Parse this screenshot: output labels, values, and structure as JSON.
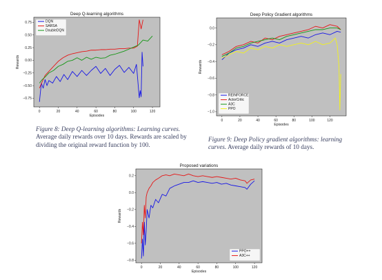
{
  "figures": [
    {
      "caption_lead": "Figure 8: Deep Q-learning algorithms: Learning curves.",
      "caption_rest": " Average daily rewards over 10 days. Rewards are scaled by dividing the original reward function by 100."
    },
    {
      "caption_lead": "Figure 9: Deep Policy gradient algorithms: learning curves.",
      "caption_rest": " Average daily rewards of 10 days."
    }
  ],
  "chart_data": [
    {
      "id": "dql",
      "type": "line",
      "title": "Deep Q-learning algorithms",
      "xlabel": "Episodes",
      "ylabel": "Rewards",
      "xlim": [
        -6,
        128
      ],
      "ylim": [
        -0.92,
        0.85
      ],
      "xticks": [
        0,
        20,
        40,
        60,
        80,
        100,
        120
      ],
      "yticks": [
        -0.75,
        -0.5,
        -0.25,
        0.0,
        0.25,
        0.5,
        0.75
      ],
      "ytick_labels": [
        "−0.75",
        "−0.50",
        "−0.25",
        "0.00",
        "0.25",
        "0.50",
        "0.75"
      ],
      "grid": false,
      "legend": "top-left",
      "background": "#c0c0c0",
      "series": [
        {
          "name": "DQN",
          "color": "#1515e6",
          "x": [
            0,
            2,
            4,
            6,
            8,
            10,
            14,
            18,
            22,
            26,
            30,
            35,
            40,
            45,
            50,
            55,
            60,
            65,
            70,
            75,
            80,
            85,
            90,
            95,
            100,
            103,
            104,
            105,
            106,
            107,
            108,
            109,
            110
          ],
          "y": [
            -0.82,
            -0.45,
            -0.55,
            -0.38,
            -0.5,
            -0.4,
            -0.45,
            -0.32,
            -0.42,
            -0.28,
            -0.38,
            -0.22,
            -0.32,
            -0.2,
            -0.3,
            -0.2,
            -0.12,
            -0.26,
            -0.16,
            -0.3,
            -0.18,
            -0.1,
            -0.24,
            -0.14,
            -0.26,
            -0.08,
            -0.3,
            -0.52,
            -0.74,
            -0.6,
            -0.72,
            0.16,
            -0.12
          ]
        },
        {
          "name": "SARSA",
          "color": "#e61515",
          "x": [
            0,
            3,
            6,
            10,
            15,
            20,
            25,
            30,
            35,
            40,
            45,
            50,
            55,
            60,
            65,
            70,
            75,
            80,
            85,
            90,
            95,
            100,
            104,
            106,
            108,
            110
          ],
          "y": [
            -0.55,
            -0.42,
            -0.3,
            -0.22,
            -0.12,
            -0.02,
            0.05,
            0.1,
            0.13,
            0.15,
            0.17,
            0.18,
            0.2,
            0.2,
            0.21,
            0.21,
            0.22,
            0.22,
            0.23,
            0.23,
            0.24,
            0.24,
            0.28,
            0.8,
            0.62,
            0.8
          ]
        },
        {
          "name": "DoubleDQN",
          "color": "#149614",
          "x": [
            0,
            3,
            6,
            10,
            15,
            20,
            25,
            30,
            35,
            40,
            45,
            50,
            55,
            60,
            65,
            70,
            75,
            80,
            85,
            90,
            95,
            100,
            105,
            110,
            115,
            120
          ],
          "y": [
            -0.45,
            -0.38,
            -0.33,
            -0.25,
            -0.2,
            -0.12,
            -0.08,
            -0.02,
            0.0,
            0.05,
            0.0,
            0.06,
            0.02,
            0.06,
            0.04,
            0.05,
            0.1,
            0.12,
            0.15,
            0.18,
            0.22,
            0.26,
            0.3,
            0.4,
            0.38,
            0.48
          ]
        }
      ]
    },
    {
      "id": "dpg",
      "type": "line",
      "title": "Deep Policy Gradient algorithms",
      "xlabel": "Episodes",
      "ylabel": "Rewards",
      "xlim": [
        -6,
        138
      ],
      "ylim": [
        -1.05,
        0.12
      ],
      "xticks": [
        0,
        20,
        40,
        60,
        80,
        100,
        120
      ],
      "yticks": [
        -1.0,
        -0.8,
        -0.6,
        -0.4,
        -0.2,
        0.0
      ],
      "ytick_labels": [
        "−1.0",
        "−0.8",
        "−0.6",
        "−0.4",
        "−0.2",
        "0.0"
      ],
      "grid": false,
      "legend": "bottom-left",
      "background": "#c0c0c0",
      "series": [
        {
          "name": "REINFORCE",
          "color": "#1515e6",
          "x": [
            0,
            8,
            16,
            24,
            32,
            40,
            48,
            56,
            64,
            72,
            80,
            88,
            96,
            104,
            112,
            120,
            128,
            132
          ],
          "y": [
            -0.38,
            -0.3,
            -0.26,
            -0.24,
            -0.2,
            -0.22,
            -0.18,
            -0.16,
            -0.18,
            -0.14,
            -0.12,
            -0.1,
            -0.12,
            -0.08,
            -0.06,
            -0.08,
            -0.04,
            -0.05
          ]
        },
        {
          "name": "ActorCritic",
          "color": "#e61515",
          "x": [
            0,
            8,
            16,
            24,
            32,
            40,
            48,
            56,
            64,
            72,
            80,
            88,
            96,
            104,
            112,
            120,
            128,
            132
          ],
          "y": [
            -0.32,
            -0.28,
            -0.22,
            -0.2,
            -0.16,
            -0.18,
            -0.12,
            -0.14,
            -0.1,
            -0.08,
            -0.06,
            -0.04,
            -0.02,
            0.02,
            0.0,
            0.04,
            0.02,
            -0.02
          ]
        },
        {
          "name": "A3C",
          "color": "#149614",
          "x": [
            0,
            8,
            16,
            24,
            32,
            40,
            48,
            56,
            64,
            72,
            80,
            88,
            96,
            104,
            112,
            120,
            128,
            132
          ],
          "y": [
            -0.34,
            -0.3,
            -0.24,
            -0.22,
            -0.18,
            -0.16,
            -0.14,
            -0.12,
            -0.14,
            -0.1,
            -0.08,
            -0.06,
            -0.04,
            -0.02,
            -0.02,
            0.0,
            0.0,
            -0.02
          ]
        },
        {
          "name": "PPO",
          "color": "#f2f21a",
          "x": [
            0,
            8,
            16,
            24,
            32,
            40,
            48,
            56,
            64,
            72,
            80,
            88,
            96,
            104,
            112,
            120,
            126,
            128,
            130,
            131,
            132
          ],
          "y": [
            -0.36,
            -0.32,
            -0.28,
            -0.3,
            -0.24,
            -0.26,
            -0.22,
            -0.24,
            -0.2,
            -0.22,
            -0.2,
            -0.18,
            -0.2,
            -0.16,
            -0.2,
            -0.18,
            -0.12,
            -0.2,
            -0.45,
            -0.98,
            -0.55
          ]
        }
      ]
    },
    {
      "id": "prop",
      "type": "line",
      "title": "Proposed variations",
      "xlabel": "Episodes",
      "ylabel": "Rewards",
      "xlim": [
        -6,
        128
      ],
      "ylim": [
        -0.83,
        0.28
      ],
      "xticks": [
        0,
        20,
        40,
        60,
        80,
        100,
        120
      ],
      "yticks": [
        -0.8,
        -0.6,
        -0.4,
        -0.2,
        0.0,
        0.2
      ],
      "ytick_labels": [
        "−0.8",
        "−0.6",
        "−0.4",
        "−0.2",
        "0.0",
        "0.2"
      ],
      "grid": false,
      "legend": "bottom-right",
      "background": "#c0c0c0",
      "series": [
        {
          "name": "PPO++",
          "color": "#1515e6",
          "x": [
            0,
            1,
            2,
            3,
            4,
            5,
            6,
            8,
            10,
            12,
            15,
            18,
            22,
            26,
            30,
            35,
            40,
            45,
            50,
            55,
            60,
            65,
            70,
            75,
            80,
            85,
            90,
            95,
            100,
            105,
            110,
            112,
            116,
            120
          ],
          "y": [
            -0.78,
            -0.55,
            -0.75,
            -0.35,
            -0.62,
            -0.45,
            -0.2,
            -0.3,
            -0.15,
            -0.18,
            -0.08,
            -0.12,
            -0.02,
            -0.04,
            0.05,
            0.08,
            0.1,
            0.12,
            0.12,
            0.14,
            0.12,
            0.13,
            0.12,
            0.11,
            0.12,
            0.1,
            0.11,
            0.09,
            0.08,
            0.07,
            0.06,
            0.04,
            0.1,
            0.14
          ]
        },
        {
          "name": "A3C++",
          "color": "#e61515",
          "x": [
            0,
            1,
            2,
            3,
            4,
            5,
            6,
            8,
            10,
            12,
            15,
            18,
            22,
            26,
            30,
            35,
            40,
            45,
            50,
            55,
            60,
            65,
            70,
            75,
            80,
            85,
            90,
            95,
            100,
            105,
            110,
            112,
            116,
            120
          ],
          "y": [
            -0.6,
            -0.35,
            -0.5,
            -0.15,
            -0.3,
            -0.05,
            0.0,
            0.05,
            0.08,
            0.12,
            0.15,
            0.17,
            0.2,
            0.21,
            0.2,
            0.22,
            0.21,
            0.2,
            0.22,
            0.2,
            0.19,
            0.2,
            0.19,
            0.18,
            0.19,
            0.18,
            0.17,
            0.16,
            0.17,
            0.15,
            0.14,
            0.11,
            0.15,
            0.16
          ]
        }
      ]
    }
  ]
}
